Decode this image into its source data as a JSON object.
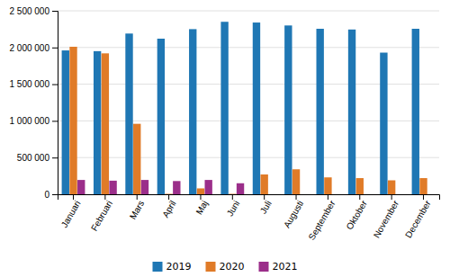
{
  "chart_data": {
    "type": "bar",
    "categories": [
      "Januari",
      "Februari",
      "Mars",
      "April",
      "Maj",
      "Juni",
      "Juli",
      "Augusti",
      "September",
      "Oktober",
      "November",
      "December"
    ],
    "series": [
      {
        "name": "2019",
        "color": "#1f77b4",
        "values": [
          1960000,
          1950000,
          2190000,
          2120000,
          2250000,
          2350000,
          2340000,
          2300000,
          2255000,
          2245000,
          1930000,
          2255000
        ]
      },
      {
        "name": "2020",
        "color": "#e07b28",
        "values": [
          2010000,
          1920000,
          960000,
          5000,
          80000,
          5000,
          270000,
          340000,
          230000,
          220000,
          190000,
          220000
        ]
      },
      {
        "name": "2021",
        "color": "#9b2e8a",
        "values": [
          195000,
          185000,
          195000,
          180000,
          195000,
          150000,
          0,
          0,
          0,
          0,
          0,
          0
        ]
      }
    ],
    "ylim": [
      0,
      2500000
    ],
    "yticks": [
      0,
      {
        "value": 500000,
        "label": "500 000"
      },
      {
        "value": 1000000,
        "label": "1 000 000"
      },
      {
        "value": 1500000,
        "label": "1 500 000"
      },
      {
        "value": 2000000,
        "label": "2 000 000"
      },
      {
        "value": 2500000,
        "label": "2 500 000"
      }
    ],
    "grid": true,
    "legend": "bottom"
  }
}
